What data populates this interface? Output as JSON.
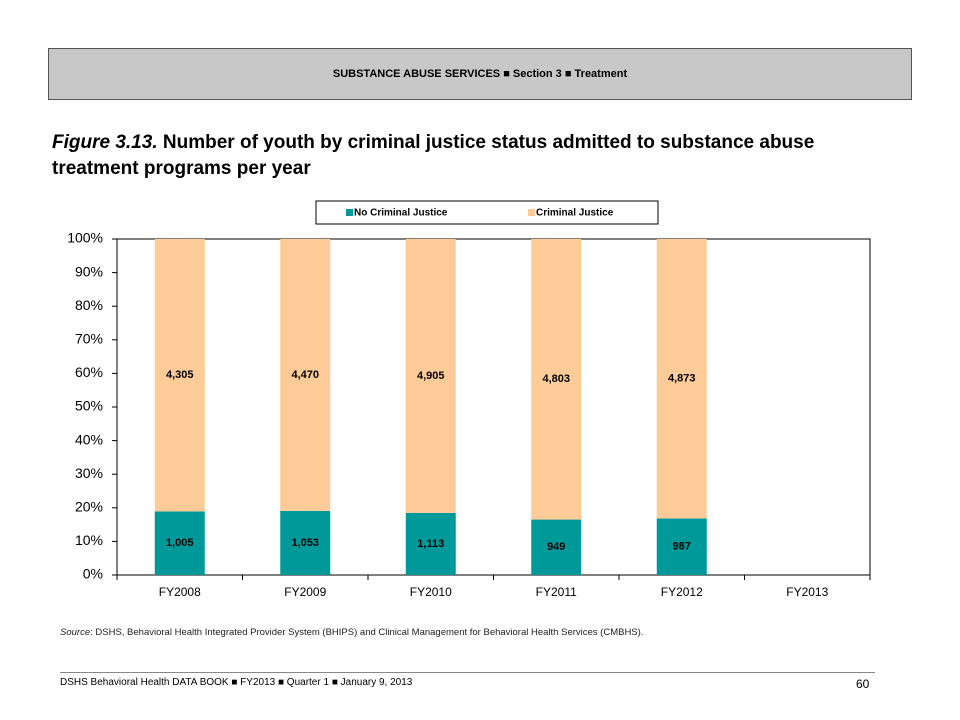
{
  "header": "SUBSTANCE ABUSE SERVICES ■ Section 3 ■ Treatment",
  "figure_label": "Figure 3.13.",
  "source": {
    "label": "Source",
    "text": ": DSHS, Behavioral Health Integrated Provider System (BHIPS) and Clinical Management for Behavioral Health Services (CMBHS)."
  },
  "footer": {
    "text": "DSHS Behavioral Health DATA BOOK ■ FY2013 ■ Quarter 1 ■ January 9, 2013",
    "page": "60"
  },
  "chart_data": {
    "type": "bar",
    "stacked": "percent",
    "title": "Number of youth by criminal justice status admitted to substance abuse treatment programs per year",
    "categories": [
      "FY2008",
      "FY2009",
      "FY2010",
      "FY2011",
      "FY2012",
      "FY2013"
    ],
    "series": [
      {
        "name": "No Criminal Justice",
        "color": "#009999",
        "values": [
          1005,
          1053,
          1113,
          949,
          987,
          null
        ],
        "value_labels": [
          "1,005",
          "1,053",
          "1,113",
          "949",
          "987",
          null
        ]
      },
      {
        "name": "Criminal Justice",
        "color": "#fccb98",
        "values": [
          4305,
          4470,
          4905,
          4803,
          4873,
          null
        ],
        "value_labels": [
          "4,305",
          "4,470",
          "4,905",
          "4,803",
          "4,873",
          null
        ]
      }
    ],
    "ylim": [
      0,
      100
    ],
    "yticks": [
      {
        "value": 0,
        "label": "0%"
      },
      {
        "value": 10,
        "label": "10%"
      },
      {
        "value": 20,
        "label": "20%"
      },
      {
        "value": 30,
        "label": "30%"
      },
      {
        "value": 40,
        "label": "40%"
      },
      {
        "value": 50,
        "label": "50%"
      },
      {
        "value": 60,
        "label": "60%"
      },
      {
        "value": 70,
        "label": "70%"
      },
      {
        "value": 80,
        "label": "80%"
      },
      {
        "value": 90,
        "label": "90%"
      },
      {
        "value": 100,
        "label": "100%"
      }
    ],
    "grid": false,
    "legend": "top"
  }
}
